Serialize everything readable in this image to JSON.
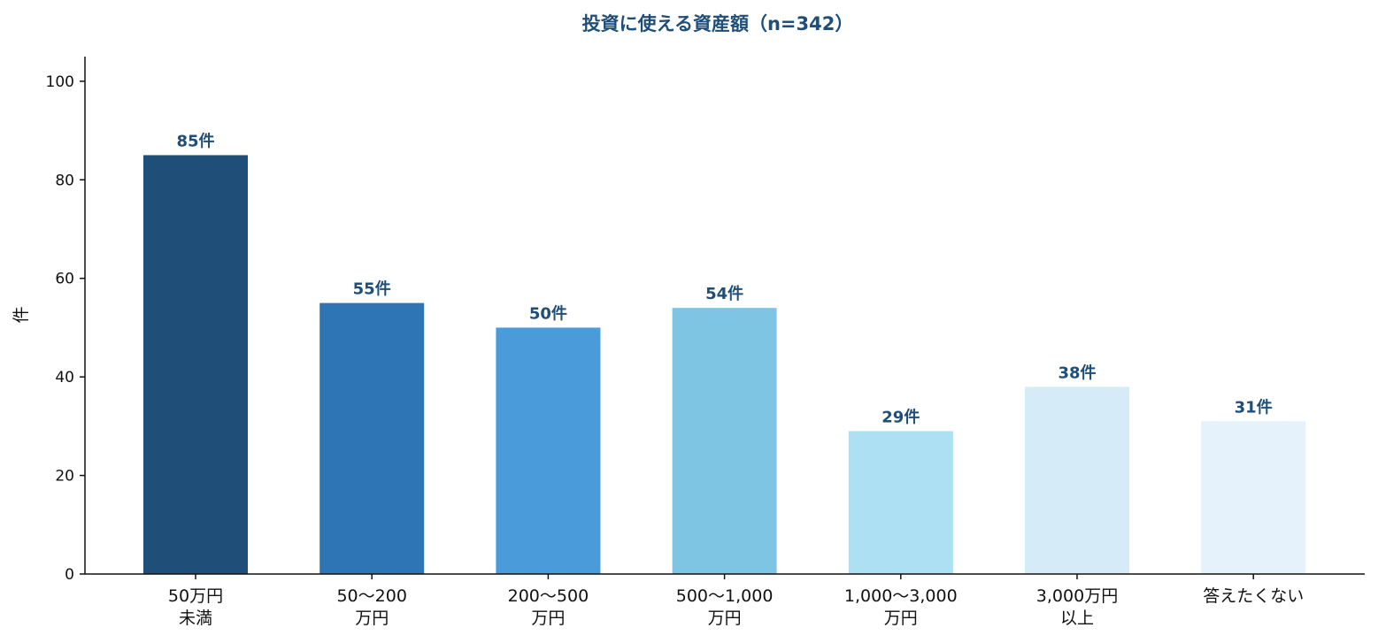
{
  "chart_data": {
    "type": "bar",
    "title": "投資に使える資産額（n=342）",
    "ylabel": "件",
    "xlabel": "",
    "ylim": [
      0,
      105
    ],
    "yticks": [
      "0",
      "20",
      "40",
      "60",
      "80",
      "100"
    ],
    "ytick_values": [
      0,
      20,
      40,
      60,
      80,
      100
    ],
    "categories": [
      [
        "50万円",
        "未満"
      ],
      [
        "50〜200",
        "万円"
      ],
      [
        "200〜500",
        "万円"
      ],
      [
        "500〜1,000",
        "万円"
      ],
      [
        "1,000〜3,000",
        "万円"
      ],
      [
        "3,000万円",
        "以上"
      ],
      [
        "答えたくない"
      ]
    ],
    "values": [
      85,
      55,
      50,
      54,
      29,
      38,
      31
    ],
    "data_labels": [
      "85件",
      "55件",
      "50件",
      "54件",
      "29件",
      "38件",
      "31件"
    ],
    "colors": [
      "#1f4e79",
      "#2e75b6",
      "#4a9bd9",
      "#7ec5e3",
      "#aee0f4",
      "#d5ecf8",
      "#e6f2fb"
    ],
    "grid": false,
    "legend": "none"
  }
}
